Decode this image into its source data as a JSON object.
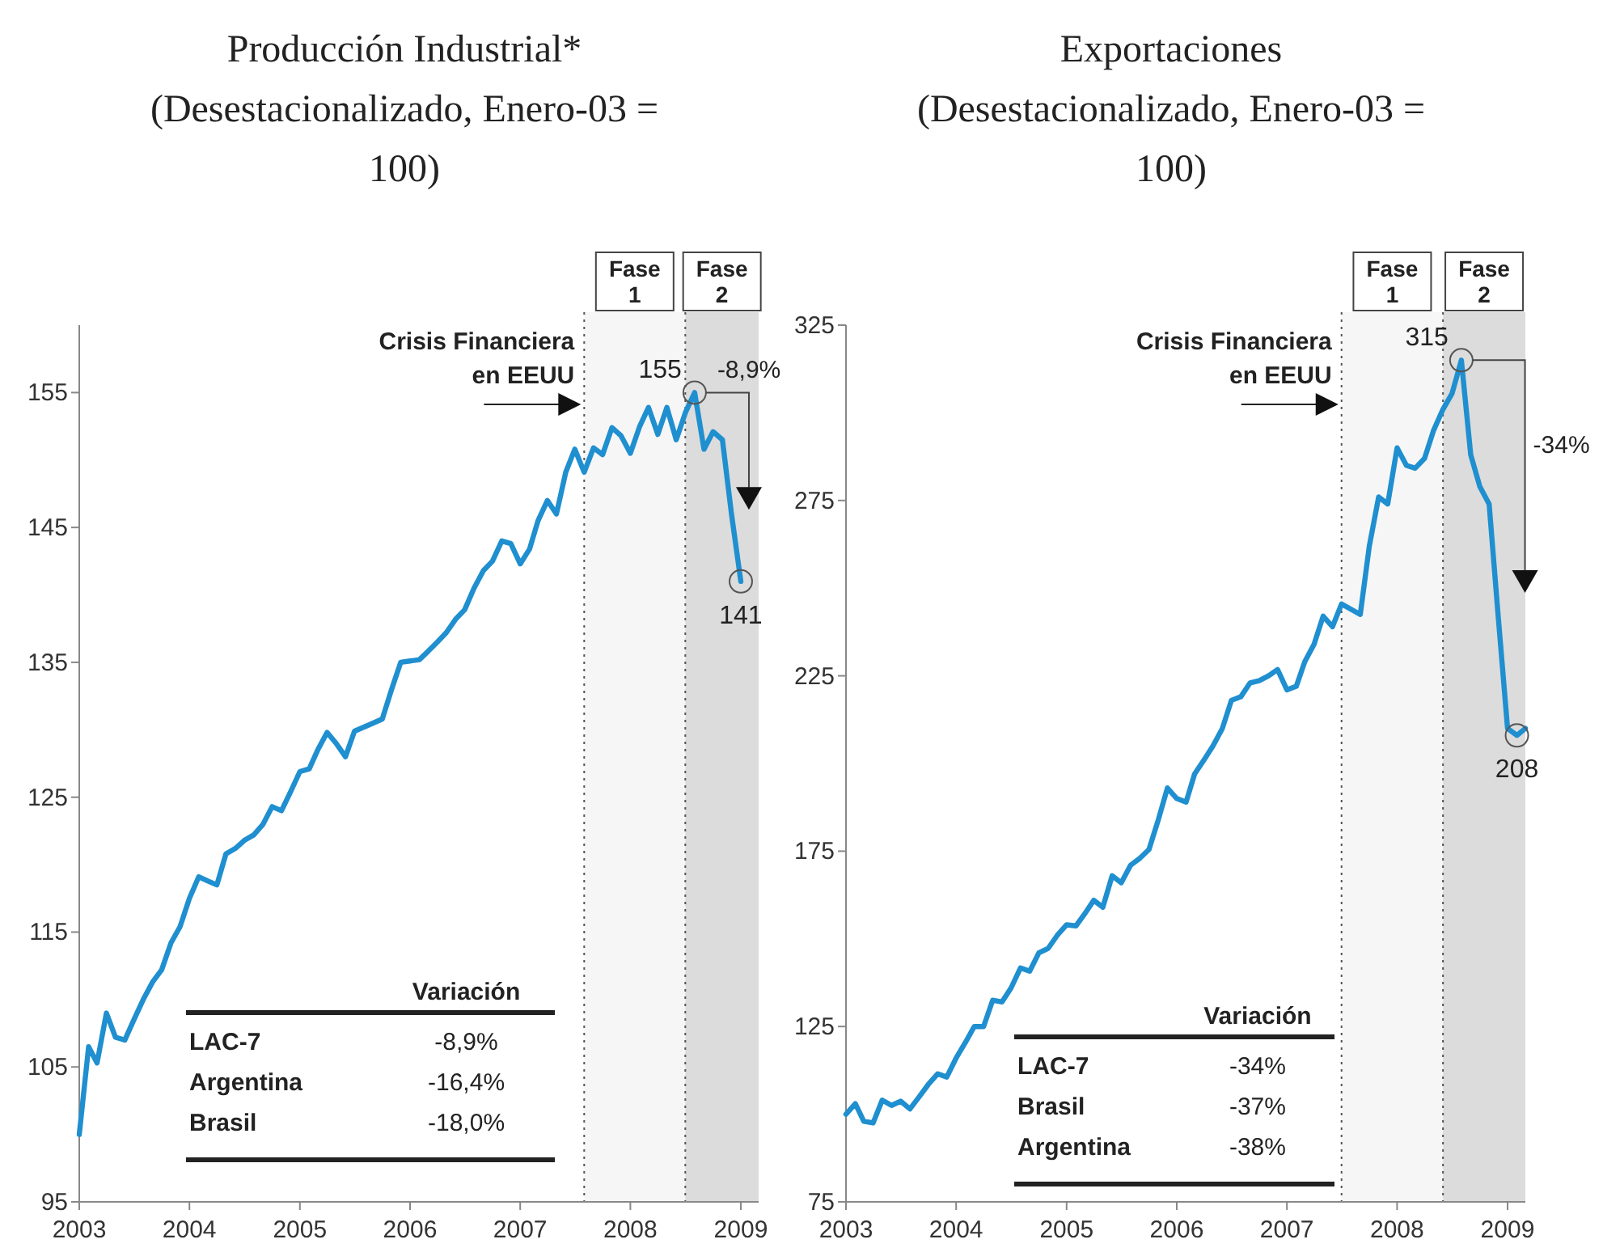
{
  "chart_data": [
    {
      "type": "line",
      "title": "Producción Industrial*",
      "subtitle": "(Desestacionalizado, Enero-03 = 100)",
      "xlim": [
        "2003-01",
        "2009-03"
      ],
      "ylim": [
        95,
        160
      ],
      "yticks": [
        95,
        105,
        115,
        125,
        135,
        145,
        155
      ],
      "xticks": [
        {
          "value": "2003-01",
          "label": "2003"
        },
        {
          "value": "2004-01",
          "label": "2004"
        },
        {
          "value": "2005-01",
          "label": "2005"
        },
        {
          "value": "2006-01",
          "label": "2006"
        },
        {
          "value": "2007-01",
          "label": "2007"
        },
        {
          "value": "2008-01",
          "label": "2008"
        },
        {
          "value": "2009-01",
          "label": "2009"
        }
      ],
      "ref_lines": [
        {
          "axis": "x",
          "value": "2007-08",
          "label": "Crisis Financiera en EEUU",
          "line_style": "dotted"
        },
        {
          "axis": "x",
          "value": "2008-07",
          "line_style": "dotted"
        }
      ],
      "bands": [
        {
          "axis": "x",
          "from": "2007-08",
          "to": "2008-07",
          "label": "Fase 1",
          "color": "#f6f6f6"
        },
        {
          "axis": "x",
          "from": "2008-07",
          "to": "2009-03",
          "label": "Fase 2",
          "color": "#dcdcdc"
        }
      ],
      "series": [
        {
          "color": "#1f8fd0",
          "x": [
            "2003-01",
            "2003-02",
            "2003-03",
            "2003-04",
            "2003-05",
            "2003-06",
            "2003-07",
            "2003-08",
            "2003-09",
            "2003-10",
            "2003-11",
            "2003-12",
            "2004-01",
            "2004-02",
            "2004-03",
            "2004-04",
            "2004-05",
            "2004-06",
            "2004-07",
            "2004-08",
            "2004-09",
            "2004-10",
            "2004-11",
            "2004-12",
            "2005-01",
            "2005-02",
            "2005-03",
            "2005-04",
            "2005-05",
            "2005-06",
            "2005-07",
            "2005-08",
            "2005-09",
            "2005-10",
            "2005-11",
            "2005-12",
            "2006-01",
            "2006-02",
            "2006-03",
            "2006-04",
            "2006-05",
            "2006-06",
            "2006-07",
            "2006-08",
            "2006-09",
            "2006-10",
            "2006-11",
            "2006-12",
            "2007-01",
            "2007-02",
            "2007-03",
            "2007-04",
            "2007-05",
            "2007-06",
            "2007-07",
            "2007-08",
            "2007-09",
            "2007-10",
            "2007-11",
            "2007-12",
            "2008-01",
            "2008-02",
            "2008-03",
            "2008-04",
            "2008-05",
            "2008-06",
            "2008-07",
            "2008-08",
            "2008-09",
            "2008-10",
            "2008-11",
            "2008-12",
            "2009-01"
          ],
          "values": [
            100,
            106.5,
            105.3,
            109,
            107.2,
            107,
            108.5,
            110,
            111.3,
            112.2,
            114.2,
            115.4,
            117.5,
            119.1,
            118.8,
            118.5,
            120.8,
            121.2,
            121.8,
            122.2,
            123,
            124.3,
            124,
            125.4,
            126.9,
            127.1,
            128.5,
            129.8,
            129,
            128,
            129.9,
            130.2,
            130.5,
            130.8,
            133,
            135,
            135.1,
            135.2,
            135.8,
            136.5,
            137.2,
            138.2,
            138.9,
            140.5,
            141.8,
            142.5,
            144,
            143.8,
            142.3,
            143.4,
            145.5,
            147,
            146,
            149.1,
            150.8,
            149.1,
            150.9,
            150.4,
            152.4,
            151.8,
            150.5,
            152.5,
            153.9,
            151.9,
            153.9,
            151.5,
            153.5,
            155,
            150.8,
            152.1,
            151.5,
            146,
            141
          ]
        }
      ],
      "annotations": [
        {
          "text": "155",
          "x": "2008-08",
          "y": 155
        },
        {
          "text": "141",
          "x": "2009-01",
          "y": 141
        },
        "-8,9%",
        "Variación",
        "LAC-7",
        "-8,9%",
        "Argentina",
        "-16,4%",
        "Brasil",
        "-18,0%"
      ]
    },
    {
      "type": "line",
      "title": "Exportaciones",
      "subtitle": "(Desestacionalizado, Enero-03 = 100)",
      "xlim": [
        "2003-01",
        "2009-03"
      ],
      "ylim": [
        75,
        325
      ],
      "yticks": [
        75,
        125,
        175,
        225,
        275,
        325
      ],
      "xticks": [
        {
          "value": "2003-01",
          "label": "2003"
        },
        {
          "value": "2004-01",
          "label": "2004"
        },
        {
          "value": "2005-01",
          "label": "2005"
        },
        {
          "value": "2006-01",
          "label": "2006"
        },
        {
          "value": "2007-01",
          "label": "2007"
        },
        {
          "value": "2008-01",
          "label": "2008"
        },
        {
          "value": "2009-01",
          "label": "2009"
        }
      ],
      "ref_lines": [
        {
          "axis": "x",
          "value": "2007-07",
          "label": "Crisis Financiera en EEUU",
          "line_style": "dotted"
        },
        {
          "axis": "x",
          "value": "2008-06",
          "line_style": "dotted"
        }
      ],
      "bands": [
        {
          "axis": "x",
          "from": "2007-07",
          "to": "2008-06",
          "label": "Fase 1",
          "color": "#f6f6f6"
        },
        {
          "axis": "x",
          "from": "2008-06",
          "to": "2009-03",
          "label": "Fase 2",
          "color": "#dcdcdc"
        }
      ],
      "series": [
        {
          "color": "#1f8fd0",
          "x": [
            "2003-01",
            "2003-02",
            "2003-03",
            "2003-04",
            "2003-05",
            "2003-06",
            "2003-07",
            "2003-08",
            "2003-09",
            "2003-10",
            "2003-11",
            "2003-12",
            "2004-01",
            "2004-02",
            "2004-03",
            "2004-04",
            "2004-05",
            "2004-06",
            "2004-07",
            "2004-08",
            "2004-09",
            "2004-10",
            "2004-11",
            "2004-12",
            "2005-01",
            "2005-02",
            "2005-03",
            "2005-04",
            "2005-05",
            "2005-06",
            "2005-07",
            "2005-08",
            "2005-09",
            "2005-10",
            "2005-11",
            "2005-12",
            "2006-01",
            "2006-02",
            "2006-03",
            "2006-04",
            "2006-05",
            "2006-06",
            "2006-07",
            "2006-08",
            "2006-09",
            "2006-10",
            "2006-11",
            "2006-12",
            "2007-01",
            "2007-02",
            "2007-03",
            "2007-04",
            "2007-05",
            "2007-06",
            "2007-07",
            "2007-08",
            "2007-09",
            "2007-10",
            "2007-11",
            "2007-12",
            "2008-01",
            "2008-02",
            "2008-03",
            "2008-04",
            "2008-05",
            "2008-06",
            "2008-07",
            "2008-08",
            "2008-09",
            "2008-10",
            "2008-11",
            "2008-12",
            "2009-01",
            "2009-02",
            "2009-03"
          ],
          "values": [
            100,
            103,
            98,
            97.5,
            104,
            102.5,
            103.7,
            101.5,
            105,
            108.5,
            111.5,
            110.6,
            116,
            120.5,
            125,
            125,
            132.5,
            132,
            136,
            141.7,
            140.8,
            146,
            147.3,
            151,
            154,
            153.7,
            157,
            161,
            159,
            168,
            166,
            171,
            173,
            175.5,
            184,
            193,
            190,
            189,
            197,
            201,
            205,
            210,
            218,
            219,
            223,
            223.6,
            225,
            226.8,
            221,
            222,
            229,
            234,
            242,
            239,
            245.5,
            244,
            242.5,
            262,
            276,
            274,
            290,
            285,
            284.2,
            287,
            295,
            301,
            305.5,
            315,
            288,
            279,
            274,
            242,
            210,
            208,
            210
          ]
        }
      ],
      "annotations": [
        {
          "text": "315",
          "x": "2008-08",
          "y": 315
        },
        {
          "text": "208",
          "x": "2009-02",
          "y": 208
        },
        "-34%",
        "Variación",
        "LAC-7",
        "-34%",
        "Brasil",
        "-37%",
        "Argentina",
        "-38%"
      ]
    }
  ]
}
